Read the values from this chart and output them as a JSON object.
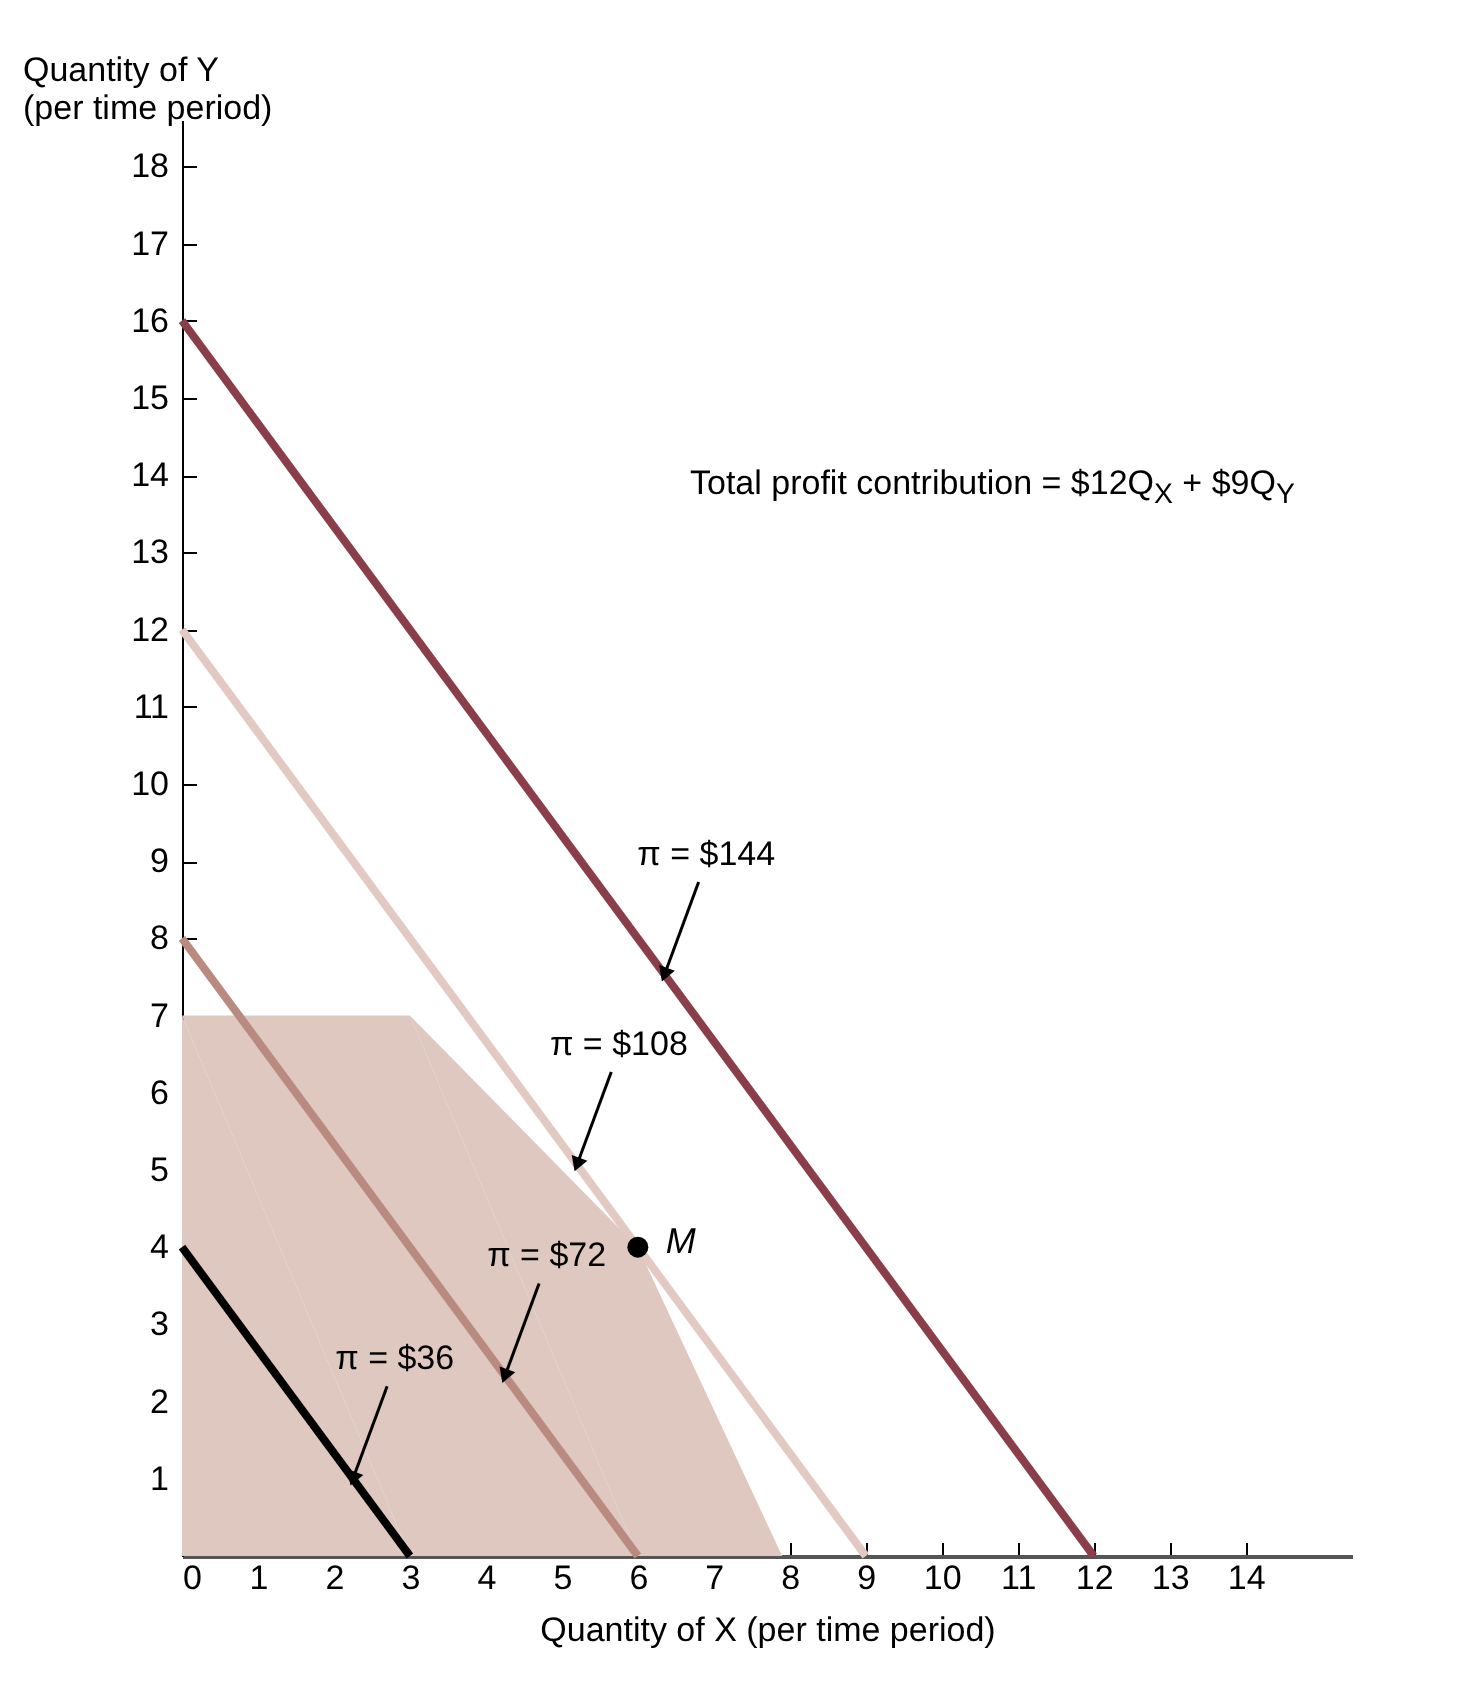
{
  "chart_data": {
    "type": "line",
    "xlabel": "Quantity of X (per time period)",
    "ylabel": "Quantity of Y\n(per time period)",
    "xlim": [
      0,
      15.4
    ],
    "ylim": [
      0,
      18.6
    ],
    "xticks": [
      0,
      1,
      2,
      3,
      4,
      5,
      6,
      7,
      8,
      9,
      10,
      11,
      12,
      13,
      14
    ],
    "yticks": [
      1,
      2,
      3,
      4,
      5,
      6,
      7,
      8,
      9,
      10,
      11,
      12,
      13,
      14,
      15,
      16,
      17,
      18
    ],
    "grid": false,
    "legend": false,
    "series": [
      {
        "type": "area",
        "color": "#dec8bf",
        "x": [
          0,
          3,
          6,
          7.9
        ],
        "values": [
          7,
          7,
          4,
          0
        ]
      },
      {
        "color": "#000000",
        "x": [
          0,
          3
        ],
        "values": [
          4,
          0
        ]
      },
      {
        "color": "#b98a80",
        "x": [
          0,
          6
        ],
        "values": [
          8,
          0
        ]
      },
      {
        "color": "#e2c9c1",
        "x": [
          0,
          9
        ],
        "values": [
          12,
          0
        ]
      },
      {
        "color": "#8a3e4a",
        "x": [
          0,
          12
        ],
        "values": [
          16,
          0
        ]
      },
      {
        "type": "scatter",
        "name": "M",
        "color": "#000000",
        "marker": "circle",
        "x": [
          6
        ],
        "values": [
          4
        ]
      }
    ],
    "annotations": [
      "Total profit contribution = $12Q$_{X}$ + $9Q$_{Y}$",
      {
        "text": "π = $36",
        "x": 2.25,
        "y": 1.0
      },
      {
        "text": "π = $72",
        "x": 4.25,
        "y": 2.33
      },
      {
        "text": "π = $108",
        "x": 5.2,
        "y": 5.07
      },
      {
        "text": "π = $144",
        "x": 6.35,
        "y": 7.53
      }
    ]
  }
}
